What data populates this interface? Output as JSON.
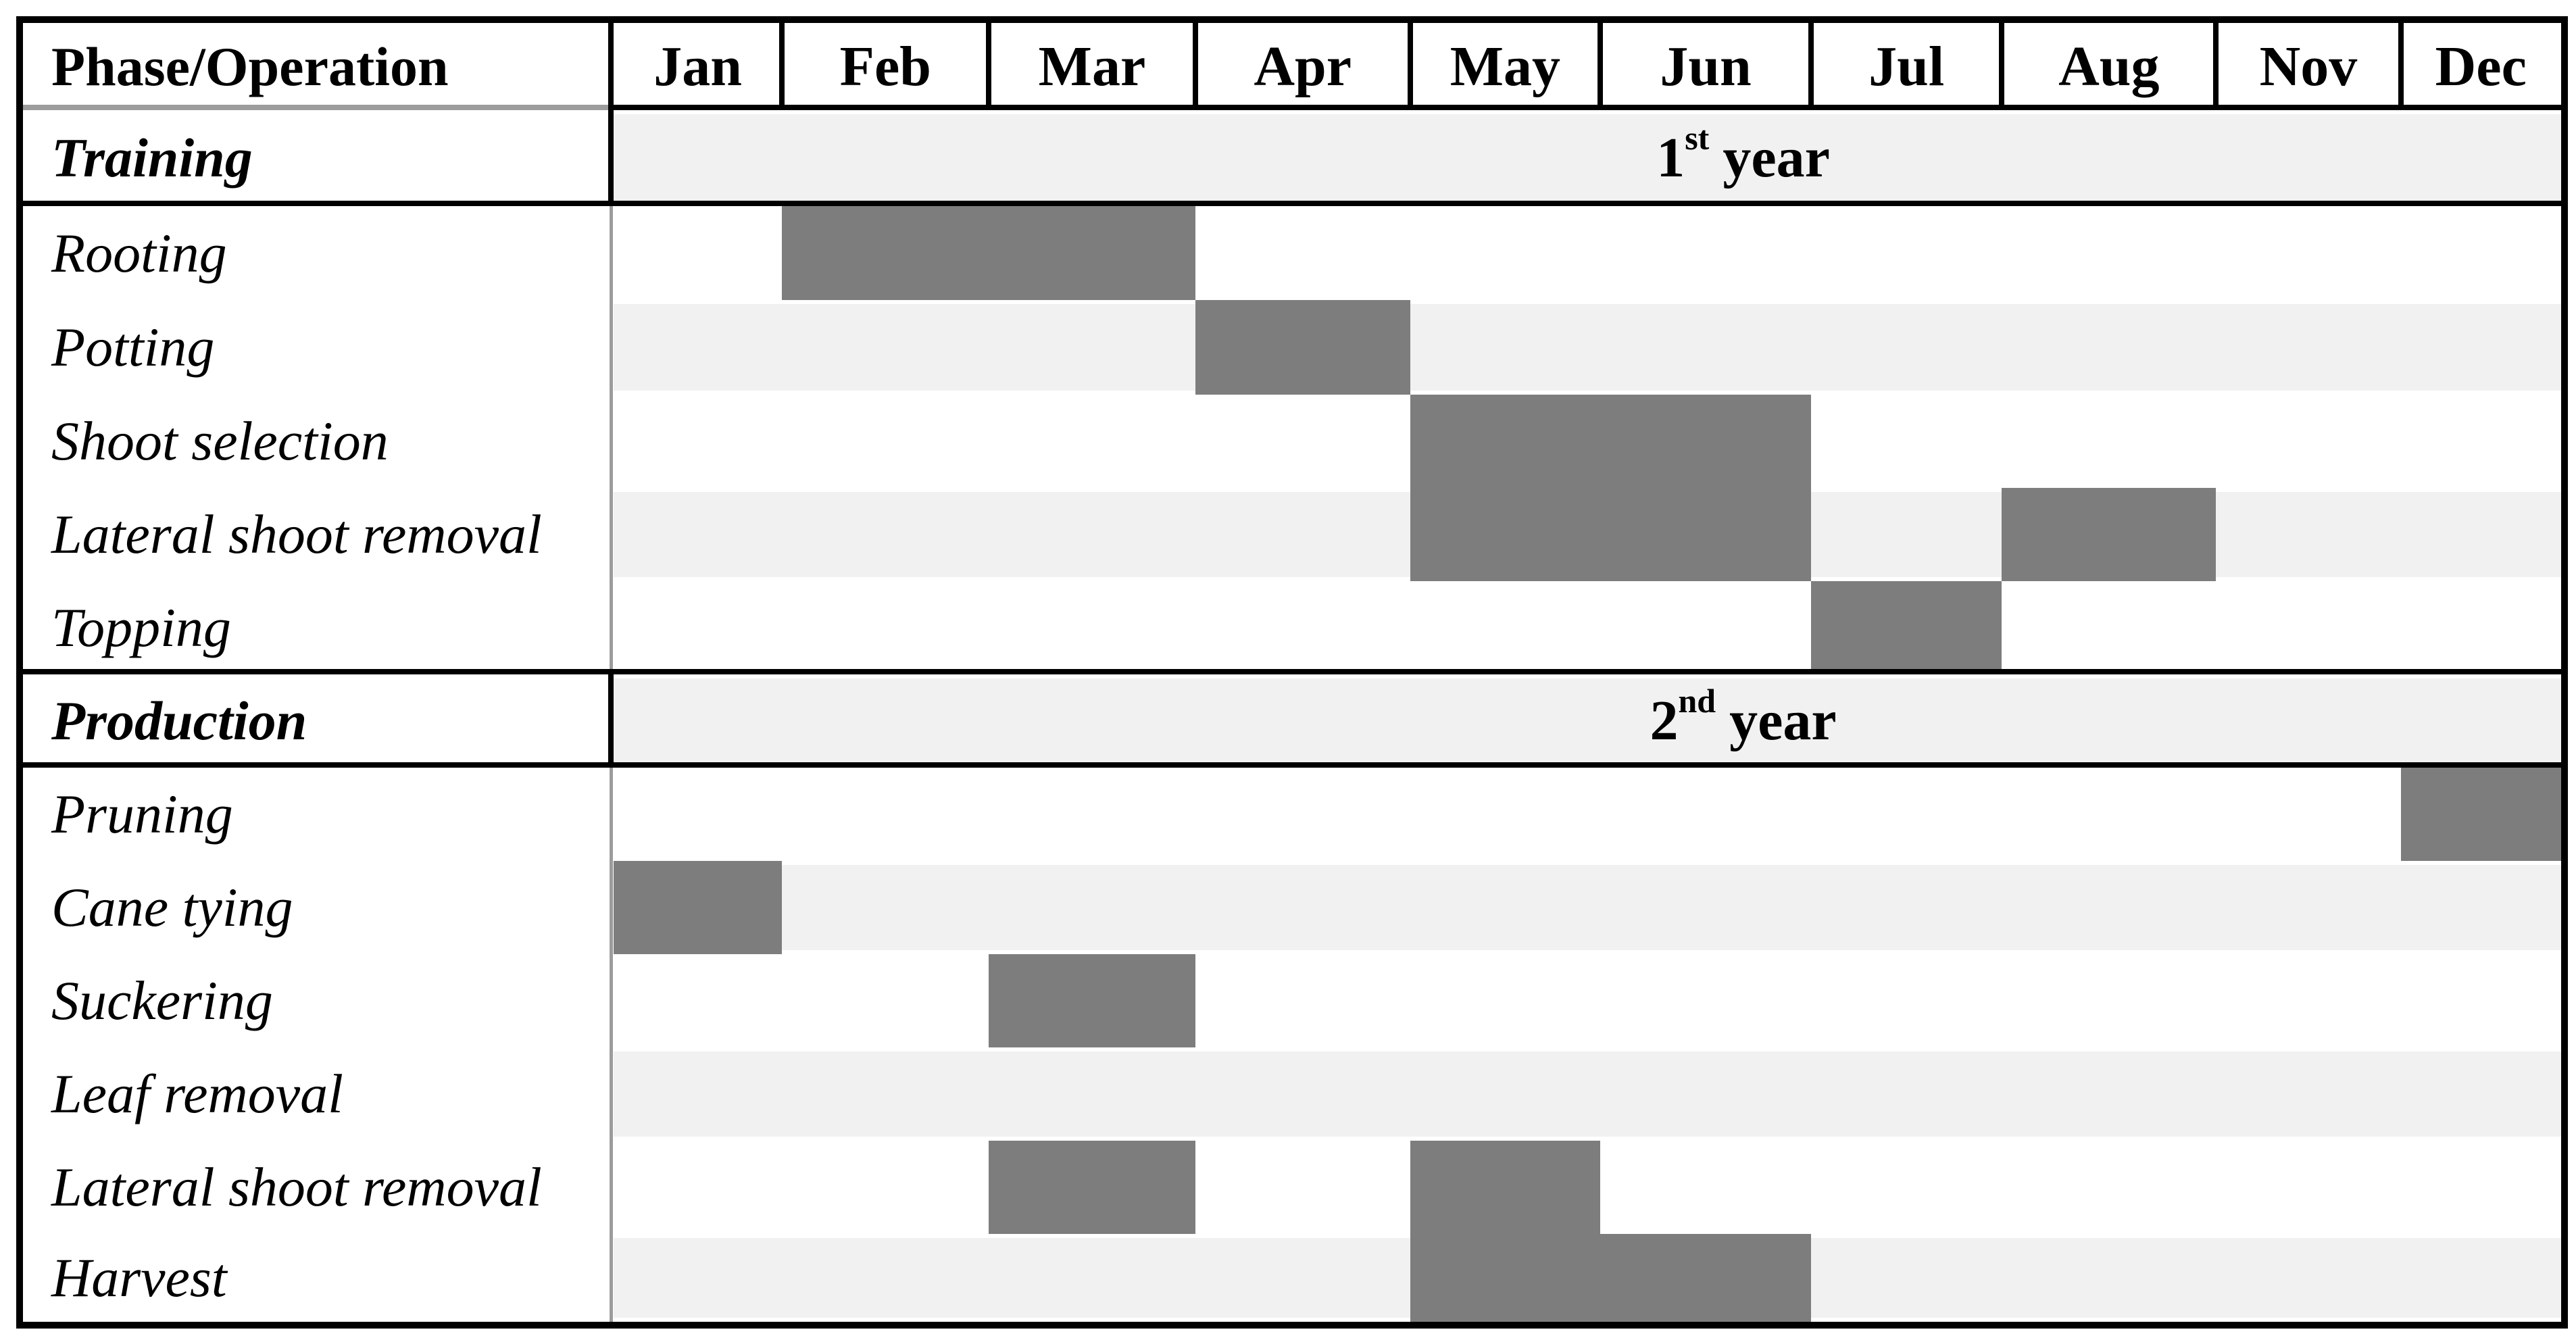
{
  "header": {
    "phase_column_label": "Phase/Operation"
  },
  "colors": {
    "bar": "#7d7d7d",
    "band": "#f1f1f1",
    "border": "#000000",
    "divider_gray": "#9c9c9c",
    "background": "#ffffff"
  },
  "chart_data": {
    "type": "table",
    "subtype": "gantt-calendar",
    "title": "Phase/Operation schedule by month",
    "columns": [
      "Jan",
      "Feb",
      "Mar",
      "Apr",
      "May",
      "Jun",
      "Jul",
      "Aug",
      "Nov",
      "Dec"
    ],
    "sections": [
      {
        "phase": "Training",
        "year_label": "1st year",
        "year_ordinal": "1",
        "year_suffix": "st",
        "year_word": "year",
        "operations": [
          {
            "name": "Rooting",
            "active_months": [
              "Feb",
              "Mar"
            ]
          },
          {
            "name": "Potting",
            "active_months": [
              "Apr"
            ]
          },
          {
            "name": "Shoot selection",
            "active_months": [
              "May",
              "Jun"
            ]
          },
          {
            "name": "Lateral shoot removal",
            "active_months": [
              "May",
              "Jun",
              "Aug"
            ]
          },
          {
            "name": "Topping",
            "active_months": [
              "Jul"
            ]
          }
        ]
      },
      {
        "phase": "Production",
        "year_label": "2nd year",
        "year_ordinal": "2",
        "year_suffix": "nd",
        "year_word": "year",
        "operations": [
          {
            "name": "Pruning",
            "active_months": [
              "Dec"
            ]
          },
          {
            "name": "Cane tying",
            "active_months": [
              "Jan"
            ]
          },
          {
            "name": "Suckering",
            "active_months": [
              "Mar"
            ]
          },
          {
            "name": "Leaf removal",
            "active_months": []
          },
          {
            "name": "Lateral shoot removal",
            "active_months": [
              "Mar",
              "May"
            ]
          },
          {
            "name": "Harvest",
            "active_months": [
              "May",
              "Jun"
            ]
          }
        ]
      }
    ]
  }
}
